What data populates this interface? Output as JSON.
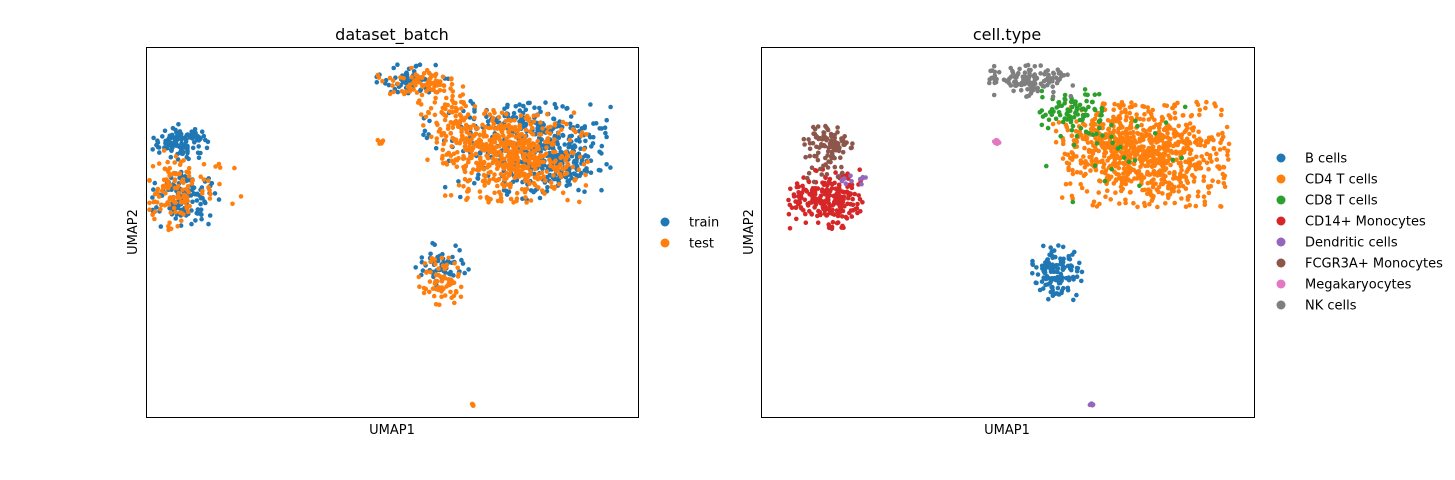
{
  "chart_data": [
    {
      "type": "scatter",
      "title": "dataset_batch",
      "xlabel": "UMAP1",
      "ylabel": "UMAP2",
      "xlim": [
        -7,
        13
      ],
      "ylim": [
        -10,
        10
      ],
      "grid": false,
      "ticks": "none",
      "legend": "right-outside",
      "series": [
        {
          "name": "train",
          "color": "#1f77b4",
          "clusters": [
            {
              "x": -5.6,
              "y": 4.9,
              "sx": 0.55,
              "sy": 0.45,
              "n": 110
            },
            {
              "x": -5.4,
              "y": 1.8,
              "sx": 0.65,
              "sy": 0.7,
              "n": 130
            },
            {
              "x": 3.8,
              "y": 8.3,
              "sx": 0.7,
              "sy": 0.35,
              "n": 60
            },
            {
              "x": 9.6,
              "y": 4.6,
              "sx": 1.05,
              "sy": 1.1,
              "n": 300
            },
            {
              "x": 7.0,
              "y": 5.8,
              "sx": 1.3,
              "sy": 0.6,
              "n": 80
            },
            {
              "x": 5.0,
              "y": -1.8,
              "sx": 0.5,
              "sy": 0.6,
              "n": 55
            },
            {
              "x": 8.0,
              "y": 3.5,
              "sx": 1.4,
              "sy": 0.8,
              "n": 90
            }
          ]
        },
        {
          "name": "test",
          "color": "#ff7f0e",
          "clusters": [
            {
              "x": -5.9,
              "y": 2.2,
              "sx": 0.5,
              "sy": 1.0,
              "n": 90
            },
            {
              "x": -5.0,
              "y": 2.7,
              "sx": 0.9,
              "sy": 0.8,
              "n": 40
            },
            {
              "x": 4.2,
              "y": 8.0,
              "sx": 0.9,
              "sy": 0.45,
              "n": 80
            },
            {
              "x": 5.5,
              "y": 6.5,
              "sx": 0.7,
              "sy": 0.7,
              "n": 60
            },
            {
              "x": 8.0,
              "y": 4.1,
              "sx": 1.35,
              "sy": 1.15,
              "n": 520
            },
            {
              "x": 6.0,
              "y": 5.3,
              "sx": 0.9,
              "sy": 0.8,
              "n": 60
            },
            {
              "x": 5.0,
              "y": -2.6,
              "sx": 0.45,
              "sy": 0.6,
              "n": 70
            },
            {
              "x": 2.5,
              "y": 4.9,
              "sx": 0.08,
              "sy": 0.06,
              "n": 6
            },
            {
              "x": 6.2,
              "y": -9.3,
              "sx": 0.06,
              "sy": 0.05,
              "n": 6
            }
          ]
        }
      ]
    },
    {
      "type": "scatter",
      "title": "cell.type",
      "xlabel": "UMAP1",
      "ylabel": "UMAP2",
      "xlim": [
        -7,
        13
      ],
      "ylim": [
        -10,
        10
      ],
      "grid": false,
      "ticks": "none",
      "legend": "right-outside",
      "series": [
        {
          "name": "B cells",
          "color": "#1f77b4",
          "clusters": [
            {
              "x": 5.0,
              "y": -2.2,
              "sx": 0.5,
              "sy": 0.7,
              "n": 130
            }
          ]
        },
        {
          "name": "CD4 T cells",
          "color": "#ff7f0e",
          "clusters": [
            {
              "x": 8.6,
              "y": 4.2,
              "sx": 1.55,
              "sy": 1.3,
              "n": 800
            },
            {
              "x": 6.8,
              "y": 5.6,
              "sx": 0.9,
              "sy": 0.6,
              "n": 80
            }
          ]
        },
        {
          "name": "CD8 T cells",
          "color": "#2ca02c",
          "clusters": [
            {
              "x": 5.6,
              "y": 6.5,
              "sx": 0.6,
              "sy": 0.6,
              "n": 90
            },
            {
              "x": 7.5,
              "y": 4.2,
              "sx": 1.6,
              "sy": 1.2,
              "n": 25
            }
          ]
        },
        {
          "name": "CD14+ Monocytes",
          "color": "#d62728",
          "clusters": [
            {
              "x": -4.4,
              "y": 1.8,
              "sx": 0.7,
              "sy": 0.75,
              "n": 230
            }
          ]
        },
        {
          "name": "Dendritic cells",
          "color": "#9467bd",
          "clusters": [
            {
              "x": -3.3,
              "y": 2.8,
              "sx": 0.35,
              "sy": 0.2,
              "n": 12
            },
            {
              "x": 6.4,
              "y": -9.3,
              "sx": 0.06,
              "sy": 0.05,
              "n": 6
            }
          ]
        },
        {
          "name": "FCGR3A+ Monocytes",
          "color": "#8c564b",
          "clusters": [
            {
              "x": -4.3,
              "y": 4.9,
              "sx": 0.45,
              "sy": 0.4,
              "n": 90
            },
            {
              "x": -4.5,
              "y": 3.5,
              "sx": 0.4,
              "sy": 0.35,
              "n": 18
            }
          ]
        },
        {
          "name": "Megakaryocytes",
          "color": "#e377c2",
          "clusters": [
            {
              "x": 2.6,
              "y": 4.9,
              "sx": 0.1,
              "sy": 0.05,
              "n": 8
            }
          ]
        },
        {
          "name": "NK cells",
          "color": "#7f7f7f",
          "clusters": [
            {
              "x": 4.0,
              "y": 8.2,
              "sx": 0.8,
              "sy": 0.4,
              "n": 130
            }
          ]
        }
      ]
    }
  ]
}
